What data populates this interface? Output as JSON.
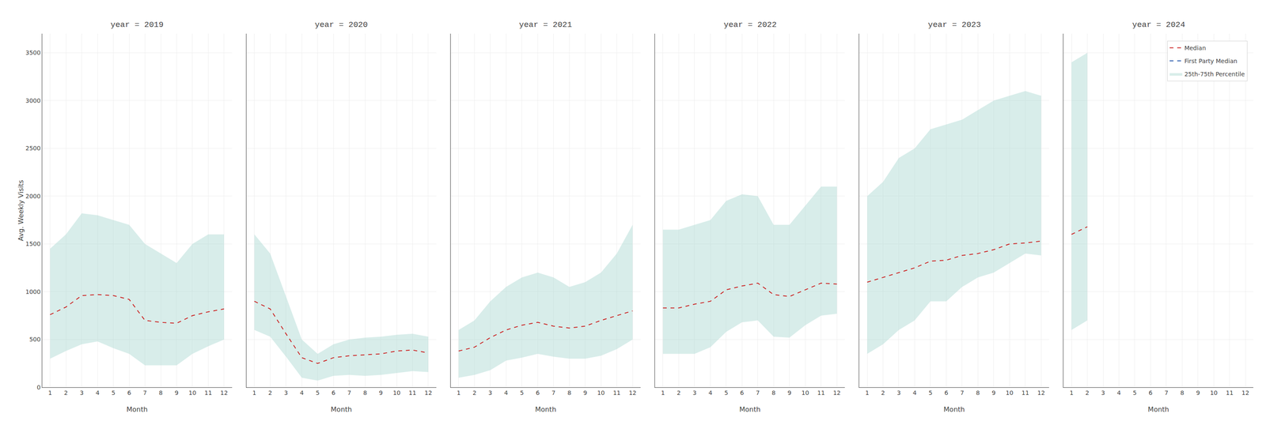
{
  "chart_data": [
    {
      "type": "line",
      "title": "year = 2019",
      "xlabel": "Month",
      "ylabel": "Avg. Weekly Visits",
      "x": [
        1,
        2,
        3,
        4,
        5,
        6,
        7,
        8,
        9,
        10,
        11,
        12
      ],
      "xlim": [
        0.5,
        12.5
      ],
      "xticks": [
        1,
        2,
        3,
        4,
        5,
        6,
        7,
        8,
        9,
        10,
        11,
        12
      ],
      "ylim": [
        0,
        3700
      ],
      "yticks": [
        0,
        500,
        1000,
        1500,
        2000,
        2500,
        3000,
        3500
      ],
      "grid": true,
      "series": [
        {
          "name": "Median",
          "color": "#cc2222",
          "line_style": "dashed",
          "values": [
            760,
            840,
            960,
            970,
            960,
            920,
            700,
            680,
            670,
            750,
            790,
            820
          ]
        },
        {
          "name": "25th-75th Percentile",
          "type": "area",
          "color": "#a8d8d0",
          "low": [
            300,
            380,
            450,
            480,
            410,
            350,
            230,
            230,
            230,
            350,
            430,
            500
          ],
          "high": [
            1450,
            1600,
            1820,
            1800,
            1750,
            1700,
            1500,
            1400,
            1300,
            1500,
            1600,
            1600
          ]
        }
      ]
    },
    {
      "type": "line",
      "title": "year = 2020",
      "xlabel": "Month",
      "x": [
        1,
        2,
        3,
        4,
        5,
        6,
        7,
        8,
        9,
        10,
        11,
        12
      ],
      "xlim": [
        0.5,
        12.5
      ],
      "xticks": [
        1,
        2,
        3,
        4,
        5,
        6,
        7,
        8,
        9,
        10,
        11,
        12
      ],
      "ylim": [
        0,
        3700
      ],
      "yticks": [
        0,
        500,
        1000,
        1500,
        2000,
        2500,
        3000,
        3500
      ],
      "grid": true,
      "tick_labels": "x",
      "series": [
        {
          "name": "Median",
          "color": "#cc2222",
          "line_style": "dashed",
          "values": [
            900,
            820,
            560,
            310,
            250,
            310,
            330,
            340,
            350,
            380,
            390,
            360
          ]
        },
        {
          "name": "25th-75th Percentile",
          "type": "area",
          "color": "#a8d8d0",
          "low": [
            600,
            530,
            320,
            100,
            70,
            120,
            130,
            120,
            130,
            150,
            170,
            160
          ],
          "high": [
            1600,
            1400,
            950,
            500,
            350,
            450,
            500,
            520,
            530,
            550,
            560,
            530
          ]
        }
      ]
    },
    {
      "type": "line",
      "title": "year = 2021",
      "xlabel": "Month",
      "x": [
        1,
        2,
        3,
        4,
        5,
        6,
        7,
        8,
        9,
        10,
        11,
        12
      ],
      "xlim": [
        0.5,
        12.5
      ],
      "xticks": [
        1,
        2,
        3,
        4,
        5,
        6,
        7,
        8,
        9,
        10,
        11,
        12
      ],
      "ylim": [
        0,
        3700
      ],
      "yticks": [
        0,
        500,
        1000,
        1500,
        2000,
        2500,
        3000,
        3500
      ],
      "grid": true,
      "tick_labels": "x",
      "series": [
        {
          "name": "Median",
          "color": "#cc2222",
          "line_style": "dashed",
          "values": [
            380,
            420,
            520,
            600,
            650,
            680,
            640,
            620,
            640,
            700,
            750,
            800
          ]
        },
        {
          "name": "25th-75th Percentile",
          "type": "area",
          "color": "#a8d8d0",
          "low": [
            100,
            130,
            180,
            280,
            310,
            350,
            320,
            300,
            300,
            330,
            400,
            500
          ],
          "high": [
            600,
            700,
            900,
            1050,
            1150,
            1200,
            1150,
            1050,
            1100,
            1200,
            1400,
            1700
          ]
        }
      ]
    },
    {
      "type": "line",
      "title": "year = 2022",
      "xlabel": "Month",
      "x": [
        1,
        2,
        3,
        4,
        5,
        6,
        7,
        8,
        9,
        10,
        11,
        12
      ],
      "xlim": [
        0.5,
        12.5
      ],
      "xticks": [
        1,
        2,
        3,
        4,
        5,
        6,
        7,
        8,
        9,
        10,
        11,
        12
      ],
      "ylim": [
        0,
        3700
      ],
      "yticks": [
        0,
        500,
        1000,
        1500,
        2000,
        2500,
        3000,
        3500
      ],
      "grid": true,
      "tick_labels": "x",
      "series": [
        {
          "name": "Median",
          "color": "#cc2222",
          "line_style": "dashed",
          "values": [
            830,
            830,
            870,
            900,
            1020,
            1060,
            1090,
            970,
            950,
            1020,
            1090,
            1080
          ]
        },
        {
          "name": "25th-75th Percentile",
          "type": "area",
          "color": "#a8d8d0",
          "low": [
            350,
            350,
            350,
            420,
            580,
            680,
            700,
            530,
            520,
            650,
            750,
            770
          ],
          "high": [
            1650,
            1650,
            1700,
            1750,
            1950,
            2020,
            2000,
            1700,
            1700,
            1900,
            2100,
            2100
          ]
        }
      ]
    },
    {
      "type": "line",
      "title": "year = 2023",
      "xlabel": "Month",
      "x": [
        1,
        2,
        3,
        4,
        5,
        6,
        7,
        8,
        9,
        10,
        11,
        12
      ],
      "xlim": [
        0.5,
        12.5
      ],
      "xticks": [
        1,
        2,
        3,
        4,
        5,
        6,
        7,
        8,
        9,
        10,
        11,
        12
      ],
      "ylim": [
        0,
        3700
      ],
      "yticks": [
        0,
        500,
        1000,
        1500,
        2000,
        2500,
        3000,
        3500
      ],
      "grid": true,
      "tick_labels": "x",
      "series": [
        {
          "name": "Median",
          "color": "#cc2222",
          "line_style": "dashed",
          "values": [
            1100,
            1150,
            1200,
            1250,
            1320,
            1330,
            1380,
            1400,
            1440,
            1500,
            1510,
            1530
          ]
        },
        {
          "name": "25th-75th Percentile",
          "type": "area",
          "color": "#a8d8d0",
          "low": [
            350,
            450,
            600,
            700,
            900,
            900,
            1050,
            1150,
            1200,
            1300,
            1400,
            1380
          ],
          "high": [
            2000,
            2150,
            2400,
            2500,
            2700,
            2750,
            2800,
            2900,
            3000,
            3050,
            3100,
            3050
          ]
        }
      ]
    },
    {
      "type": "line",
      "title": "year = 2024",
      "xlabel": "Month",
      "x": [
        1,
        2,
        3,
        4,
        5,
        6,
        7,
        8,
        9,
        10,
        11,
        12
      ],
      "xlim": [
        0.5,
        12.5
      ],
      "xticks": [
        1,
        2,
        3,
        4,
        5,
        6,
        7,
        8,
        9,
        10,
        11,
        12
      ],
      "ylim": [
        0,
        3700
      ],
      "yticks": [
        0,
        500,
        1000,
        1500,
        2000,
        2500,
        3000,
        3500
      ],
      "grid": true,
      "tick_labels": "x",
      "legend": "upper right",
      "series": [
        {
          "name": "Median",
          "color": "#cc2222",
          "line_style": "dashed",
          "values": [
            1600,
            1680,
            null,
            null,
            null,
            null,
            null,
            null,
            null,
            null,
            null,
            null
          ]
        },
        {
          "name": "First Party Median",
          "color": "#2255aa",
          "line_style": "dashed",
          "values": [
            null,
            null,
            null,
            null,
            null,
            null,
            null,
            null,
            null,
            null,
            null,
            null
          ]
        },
        {
          "name": "25th-75th Percentile",
          "type": "area",
          "color": "#a8d8d0",
          "low": [
            600,
            700,
            null,
            null,
            null,
            null,
            null,
            null,
            null,
            null,
            null,
            null
          ],
          "high": [
            3400,
            3500,
            null,
            null,
            null,
            null,
            null,
            null,
            null,
            null,
            null,
            null
          ]
        }
      ]
    }
  ]
}
